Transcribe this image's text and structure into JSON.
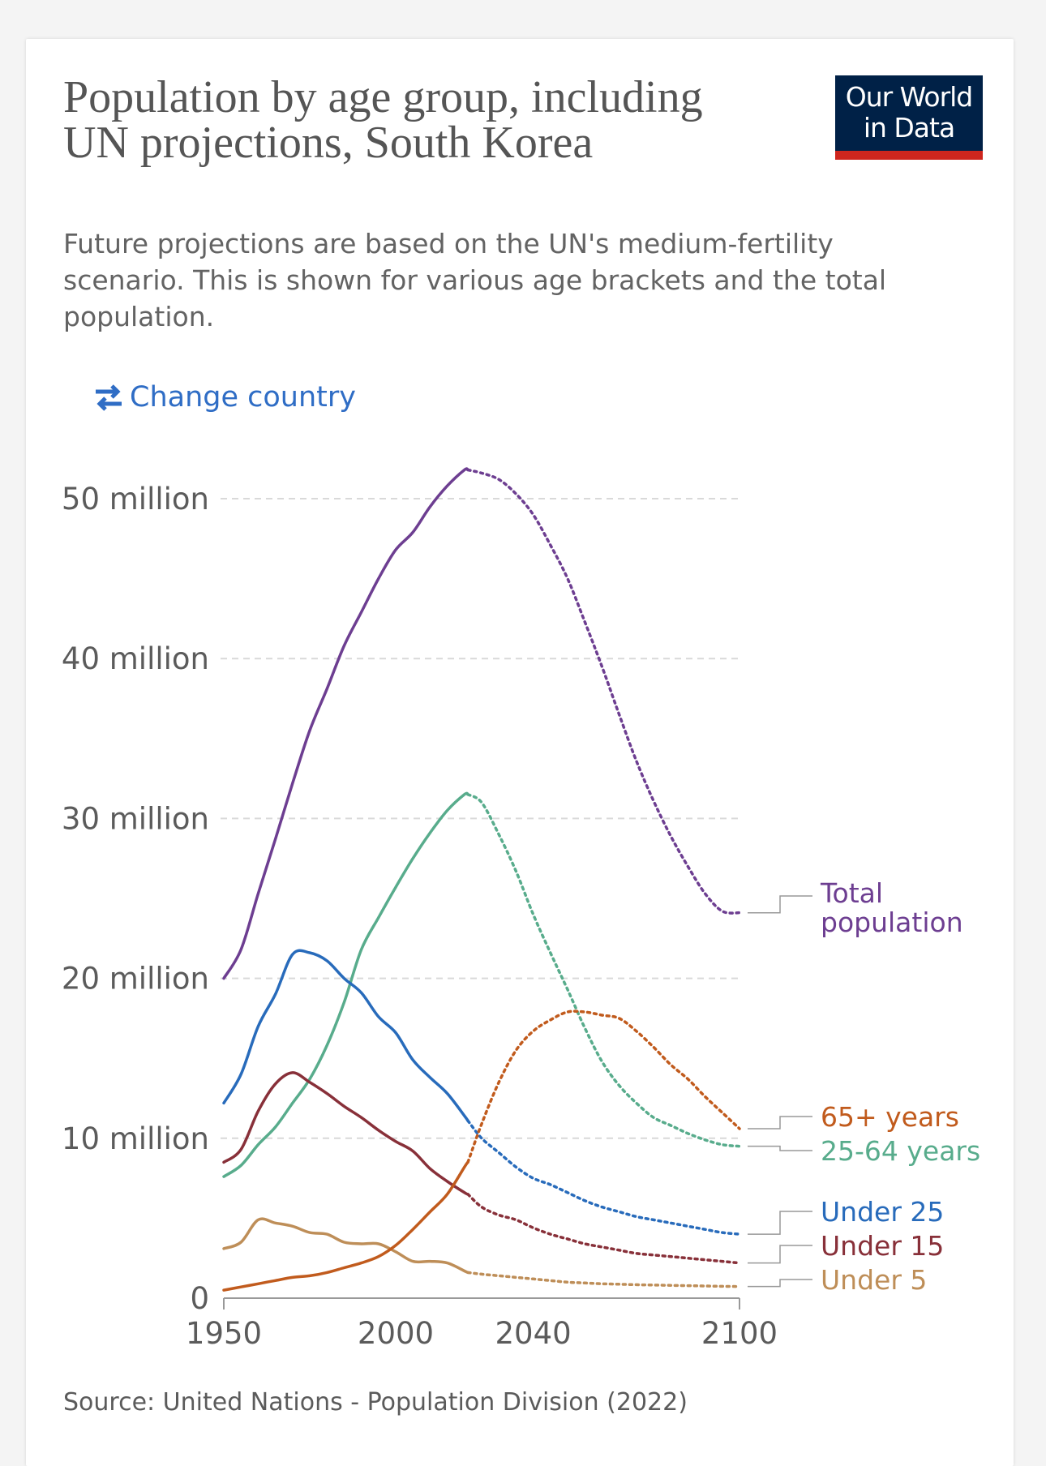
{
  "header": {
    "title": "Population by age group, including UN projections, South Korea",
    "subtitle": "Future projections are based on the UN's medium-fertility scenario. This is shown for various age brackets and the total population.",
    "logo_line1": "Our World",
    "logo_line2": "in Data",
    "change_country": "Change country"
  },
  "footer": {
    "source": "Source: United Nations - Population Division (2022)"
  },
  "colors": {
    "brand_navy": "#002147",
    "brand_red": "#ce261e",
    "link_blue": "#2f6dc5"
  },
  "chart_data": {
    "type": "line",
    "title": "Population by age group, including UN projections, South Korea",
    "xlim": [
      1950,
      2100
    ],
    "ylim": [
      0,
      52000000
    ],
    "x_ticks": [
      {
        "value": 1950,
        "label": "1950"
      },
      {
        "value": 2000,
        "label": "2000"
      },
      {
        "value": 2040,
        "label": "2040"
      },
      {
        "value": 2100,
        "label": "2100"
      }
    ],
    "y_ticks": [
      {
        "value": 0,
        "label": "0"
      },
      {
        "value": 10000000,
        "label": "10 million"
      },
      {
        "value": 20000000,
        "label": "20 million"
      },
      {
        "value": 30000000,
        "label": "30 million"
      },
      {
        "value": 40000000,
        "label": "40 million"
      },
      {
        "value": 50000000,
        "label": "50 million"
      }
    ],
    "grid": "horizontal dashed",
    "projection_start": 2021,
    "projection_style": "dotted",
    "series": [
      {
        "name": "Total population",
        "color": "#6d3e91",
        "x": [
          1950,
          1955,
          1960,
          1965,
          1970,
          1975,
          1980,
          1985,
          1990,
          1995,
          2000,
          2005,
          2010,
          2015,
          2020,
          2021,
          2025,
          2030,
          2035,
          2040,
          2045,
          2050,
          2055,
          2060,
          2065,
          2070,
          2075,
          2080,
          2085,
          2090,
          2095,
          2100
        ],
        "y": [
          20000000,
          21800000,
          25300000,
          28700000,
          32200000,
          35500000,
          38100000,
          40800000,
          42900000,
          45000000,
          46800000,
          47900000,
          49500000,
          50800000,
          51800000,
          51800000,
          51600000,
          51200000,
          50300000,
          49000000,
          47100000,
          45000000,
          42300000,
          39500000,
          36500000,
          33600000,
          31100000,
          28900000,
          27000000,
          25300000,
          24200000,
          24100000
        ]
      },
      {
        "name": "25-64 years",
        "color": "#58ac8c",
        "x": [
          1950,
          1955,
          1960,
          1965,
          1970,
          1975,
          1980,
          1985,
          1990,
          1995,
          2000,
          2005,
          2010,
          2015,
          2020,
          2021,
          2025,
          2030,
          2035,
          2040,
          2045,
          2050,
          2055,
          2060,
          2065,
          2070,
          2075,
          2080,
          2085,
          2090,
          2095,
          2100
        ],
        "y": [
          7600000,
          8300000,
          9600000,
          10700000,
          12200000,
          13700000,
          15800000,
          18500000,
          21800000,
          23800000,
          25700000,
          27500000,
          29100000,
          30500000,
          31500000,
          31500000,
          31000000,
          29000000,
          26700000,
          24000000,
          21600000,
          19300000,
          16900000,
          14800000,
          13300000,
          12200000,
          11300000,
          10800000,
          10300000,
          9900000,
          9600000,
          9500000
        ]
      },
      {
        "name": "Under 25",
        "color": "#286bbb",
        "x": [
          1950,
          1955,
          1960,
          1965,
          1970,
          1975,
          1980,
          1985,
          1990,
          1995,
          2000,
          2005,
          2010,
          2015,
          2020,
          2021,
          2025,
          2030,
          2035,
          2040,
          2045,
          2050,
          2055,
          2060,
          2065,
          2070,
          2075,
          2080,
          2085,
          2090,
          2095,
          2100
        ],
        "y": [
          12200000,
          14000000,
          17000000,
          19000000,
          21500000,
          21600000,
          21100000,
          20000000,
          19100000,
          17600000,
          16600000,
          14900000,
          13800000,
          12800000,
          11400000,
          11100000,
          10000000,
          9100000,
          8200000,
          7500000,
          7100000,
          6600000,
          6100000,
          5700000,
          5400000,
          5100000,
          4900000,
          4700000,
          4500000,
          4300000,
          4100000,
          4000000
        ]
      },
      {
        "name": "Under 15",
        "color": "#883039",
        "x": [
          1950,
          1955,
          1960,
          1965,
          1970,
          1975,
          1980,
          1985,
          1990,
          1995,
          2000,
          2005,
          2010,
          2015,
          2020,
          2021,
          2025,
          2030,
          2035,
          2040,
          2045,
          2050,
          2055,
          2060,
          2065,
          2070,
          2075,
          2080,
          2085,
          2090,
          2095,
          2100
        ],
        "y": [
          8500000,
          9300000,
          11700000,
          13400000,
          14100000,
          13500000,
          12800000,
          12000000,
          11300000,
          10500000,
          9800000,
          9200000,
          8100000,
          7300000,
          6600000,
          6500000,
          5700000,
          5200000,
          4900000,
          4400000,
          4000000,
          3700000,
          3400000,
          3200000,
          3000000,
          2800000,
          2700000,
          2600000,
          2500000,
          2400000,
          2300000,
          2200000
        ]
      },
      {
        "name": "Under 5",
        "color": "#be8e58",
        "x": [
          1950,
          1955,
          1960,
          1965,
          1970,
          1975,
          1980,
          1985,
          1990,
          1995,
          2000,
          2005,
          2010,
          2015,
          2020,
          2021,
          2025,
          2030,
          2035,
          2040,
          2045,
          2050,
          2055,
          2060,
          2065,
          2070,
          2075,
          2080,
          2085,
          2090,
          2095,
          2100
        ],
        "y": [
          3100000,
          3500000,
          4900000,
          4700000,
          4500000,
          4100000,
          4000000,
          3500000,
          3400000,
          3400000,
          2900000,
          2300000,
          2300000,
          2200000,
          1700000,
          1600000,
          1500000,
          1400000,
          1300000,
          1200000,
          1100000,
          1000000,
          950000,
          900000,
          870000,
          840000,
          820000,
          800000,
          780000,
          760000,
          740000,
          730000
        ]
      },
      {
        "name": "65+ years",
        "color": "#c15b1d",
        "x": [
          1950,
          1955,
          1960,
          1965,
          1970,
          1975,
          1980,
          1985,
          1990,
          1995,
          2000,
          2005,
          2010,
          2015,
          2020,
          2021,
          2025,
          2030,
          2035,
          2040,
          2045,
          2050,
          2055,
          2060,
          2065,
          2070,
          2075,
          2080,
          2085,
          2090,
          2095,
          2100
        ],
        "y": [
          500000,
          700000,
          900000,
          1100000,
          1300000,
          1400000,
          1600000,
          1900000,
          2200000,
          2600000,
          3300000,
          4300000,
          5400000,
          6500000,
          8200000,
          8500000,
          10900000,
          13500000,
          15500000,
          16700000,
          17400000,
          17900000,
          17900000,
          17700000,
          17500000,
          16700000,
          15700000,
          14600000,
          13700000,
          12600000,
          11600000,
          10600000
        ]
      }
    ],
    "legend": {
      "placement": "right",
      "entries": [
        {
          "series": "Total population",
          "lines": [
            "Total",
            "population"
          ]
        },
        {
          "series": "65+ years",
          "lines": [
            "65+ years"
          ]
        },
        {
          "series": "25-64 years",
          "lines": [
            "25-64 years"
          ]
        },
        {
          "series": "Under 25",
          "lines": [
            "Under 25"
          ]
        },
        {
          "series": "Under 15",
          "lines": [
            "Under 15"
          ]
        },
        {
          "series": "Under 5",
          "lines": [
            "Under 5"
          ]
        }
      ]
    }
  }
}
